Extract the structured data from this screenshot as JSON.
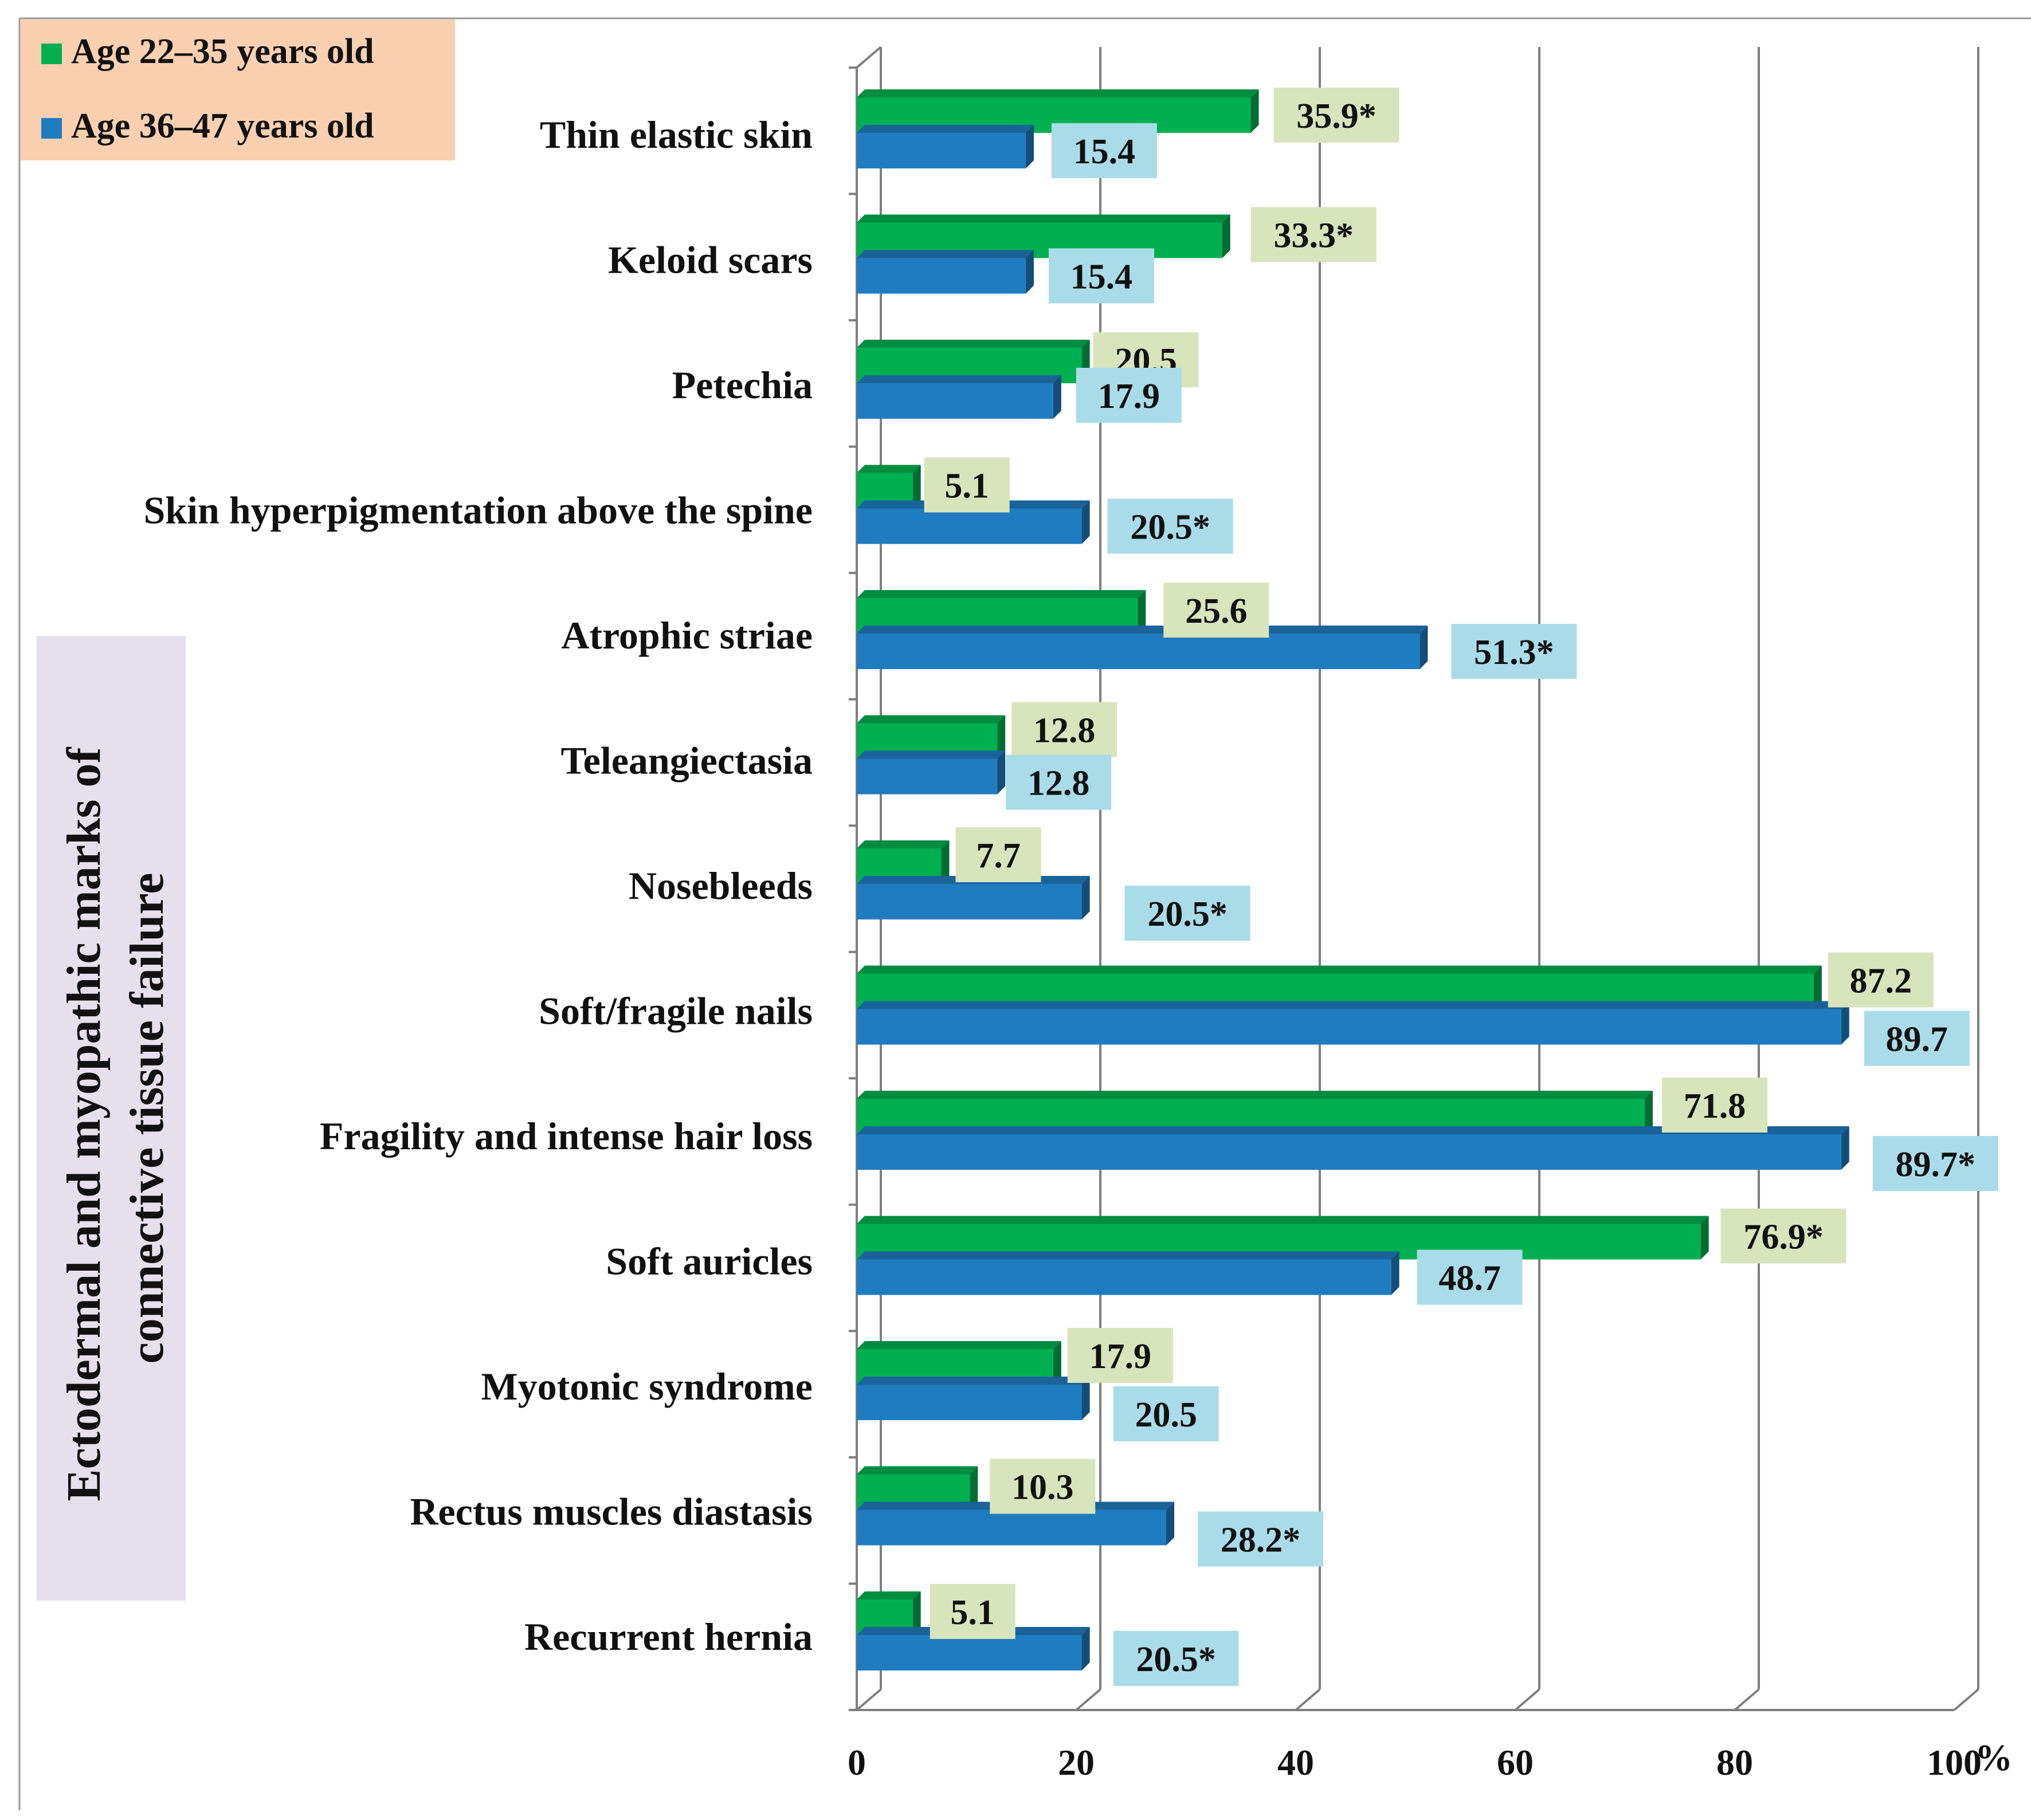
{
  "chart_data": {
    "type": "bar",
    "orientation": "horizontal",
    "title": "",
    "ylabel": "Ectodermal and myopathic marks of connective tissue failure",
    "xlabel": "",
    "x_unit": "%",
    "xlim": [
      0,
      100
    ],
    "x_ticks": [
      "0",
      "20",
      "40",
      "60",
      "80",
      "100"
    ],
    "grid": true,
    "legend_position": "top-left",
    "categories": [
      "Thin elastic skin",
      "Keloid scars",
      "Petechia",
      "Skin hyperpigmentation above the spine",
      "Atrophic striae",
      "Teleangiectasia",
      "Nosebleeds",
      "Soft/fragile nails",
      "Fragility and intense hair loss",
      "Soft auricles",
      "Myotonic syndrome",
      "Rectus muscles diastasis",
      "Recurrent hernia"
    ],
    "series": [
      {
        "name": "Age 22–35 years old",
        "color": "#00B050",
        "label_bg": "#D8E4BC",
        "values": [
          35.9,
          33.3,
          20.5,
          5.1,
          25.6,
          12.8,
          7.7,
          87.2,
          71.8,
          76.9,
          17.9,
          10.3,
          5.1
        ],
        "labels": [
          "35.9*",
          "33.3*",
          "20.5",
          "5.1",
          "25.6",
          "12.8",
          "7.7",
          "87.2",
          "71.8",
          "76.9*",
          "17.9",
          "10.3",
          "5.1"
        ]
      },
      {
        "name": "Age 36–47 years old",
        "color": "#1F7CC1",
        "label_bg": "#A9DCE8",
        "values": [
          15.4,
          15.4,
          17.9,
          20.5,
          51.3,
          12.8,
          20.5,
          89.7,
          89.7,
          48.7,
          20.5,
          28.2,
          20.5
        ],
        "labels": [
          "15.4",
          "15.4",
          "17.9",
          "20.5*",
          "51.3*",
          "12.8",
          "20.5*",
          "89.7",
          "89.7*",
          "48.7",
          "20.5",
          "28.2*",
          "20.5*"
        ]
      }
    ]
  },
  "colors": {
    "legend_bg": "#FAD0B0",
    "ylabel_bg": "#E6DFEC",
    "grid": "#7F7F7F"
  }
}
